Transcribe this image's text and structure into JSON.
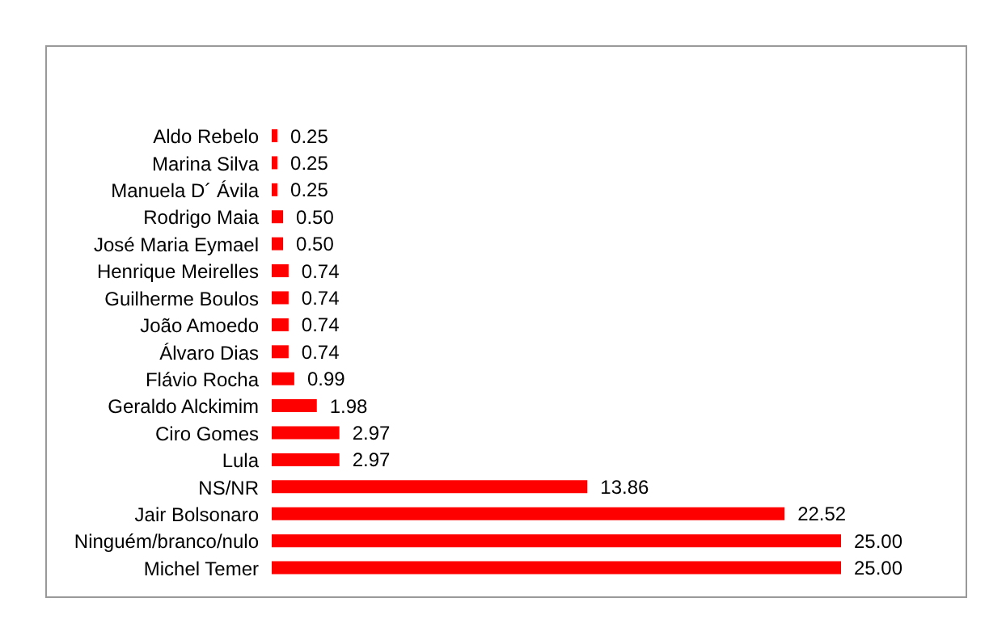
{
  "chart_data": {
    "type": "bar",
    "orientation": "horizontal",
    "categories": [
      "Aldo Rebelo",
      "Marina Silva",
      "Manuela D´ Ávila",
      "Rodrigo Maia",
      "José Maria Eymael",
      "Henrique Meirelles",
      "Guilherme Boulos",
      "João Amoedo",
      "Álvaro Dias",
      "Flávio Rocha",
      "Geraldo Alckimim",
      "Ciro Gomes",
      "Lula",
      "NS/NR",
      "Jair Bolsonaro",
      "Ninguém/branco/nulo",
      "Michel Temer"
    ],
    "values": [
      0.25,
      0.25,
      0.25,
      0.5,
      0.5,
      0.74,
      0.74,
      0.74,
      0.74,
      0.99,
      1.98,
      2.97,
      2.97,
      13.86,
      22.52,
      25,
      25
    ],
    "value_labels": [
      "0.25",
      "0.25",
      "0.25",
      "0.50",
      "0.50",
      "0.74",
      "0.74",
      "0.74",
      "0.74",
      "0.99",
      "1.98",
      "2.97",
      "2.97",
      "13.86",
      "22.52",
      "25.00",
      "25.00"
    ],
    "color": "#ff0000",
    "legend": false,
    "grid": false
  }
}
